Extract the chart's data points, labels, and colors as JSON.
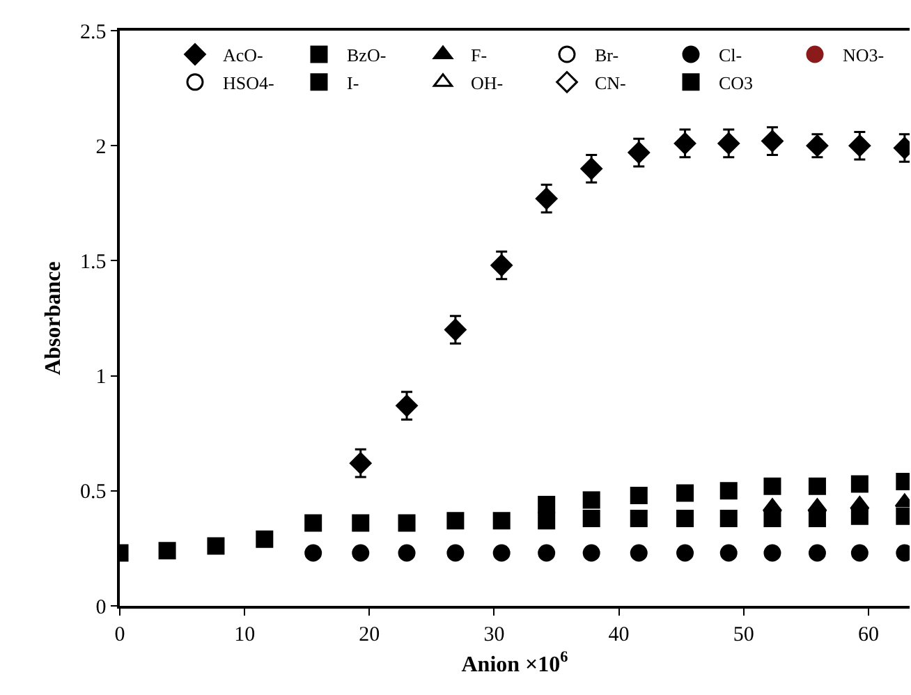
{
  "chart_data": {
    "type": "scatter",
    "xlabel": "Anion ×10$^{6}$",
    "ylabel": "Absorbance",
    "x": [
      0,
      3.8,
      7.7,
      11.6,
      15.5,
      19.3,
      23,
      26.9,
      30.6,
      34.2,
      37.8,
      41.6,
      45.3,
      48.8,
      52.3,
      55.9,
      59.3,
      62.9
    ],
    "xlim": [
      0,
      63.3
    ],
    "xticks": [
      0,
      10,
      20,
      30,
      40,
      50,
      60
    ],
    "ylim": [
      0,
      2.5
    ],
    "yticks": [
      0,
      0.5,
      1,
      1.5,
      2,
      2.5
    ],
    "grid": false,
    "legend": "top",
    "series": [
      {
        "name": "AcO-",
        "color": "#000000",
        "marker": "diamond",
        "values": [
          null,
          null,
          null,
          null,
          null,
          0.62,
          0.87,
          1.2,
          1.48,
          1.77,
          1.9,
          1.97,
          2.01,
          2.01,
          2.02,
          2,
          2,
          1.99
        ],
        "errors": [
          null,
          null,
          null,
          null,
          null,
          0.06,
          0.06,
          0.06,
          0.06,
          0.06,
          0.06,
          0.06,
          0.06,
          0.06,
          0.06,
          0.05,
          0.06,
          0.06
        ]
      },
      {
        "name": "BzO-",
        "color": "#000000",
        "marker": "square",
        "values": [
          null,
          null,
          null,
          null,
          null,
          null,
          null,
          null,
          null,
          0.44,
          0.46,
          0.48,
          0.49,
          0.5,
          0.52,
          0.52,
          0.53,
          0.54
        ]
      },
      {
        "name": "F-",
        "color": "#000000",
        "marker": "triangle",
        "values": [
          null,
          null,
          null,
          null,
          null,
          null,
          null,
          null,
          null,
          null,
          null,
          null,
          null,
          null,
          0.43,
          0.43,
          0.44,
          0.45
        ]
      },
      {
        "name": "Br-",
        "color": "#000000",
        "marker": "circle-open",
        "values": [
          null,
          null,
          null,
          null,
          null,
          null,
          null,
          null,
          null,
          null,
          null,
          null,
          null,
          null,
          null,
          null,
          null,
          null
        ]
      },
      {
        "name": "Cl-",
        "color": "#000000",
        "marker": "circle",
        "values": [
          null,
          null,
          null,
          null,
          0.23,
          0.23,
          0.23,
          0.23,
          0.23,
          0.23,
          0.23,
          0.23,
          0.23,
          0.23,
          0.23,
          0.23,
          0.23,
          0.23
        ]
      },
      {
        "name": "NO3-",
        "color": "#8b1a1a",
        "marker": "circle",
        "values": [
          null,
          null,
          null,
          null,
          null,
          null,
          null,
          null,
          null,
          null,
          null,
          null,
          null,
          null,
          null,
          null,
          null,
          null
        ]
      },
      {
        "name": "HSO4-",
        "color": "#000000",
        "marker": "circle-open",
        "values": [
          null,
          null,
          null,
          null,
          null,
          null,
          null,
          null,
          null,
          null,
          null,
          null,
          null,
          null,
          null,
          null,
          null,
          null
        ]
      },
      {
        "name": "I-",
        "color": "#000000",
        "marker": "square",
        "values": [
          null,
          null,
          null,
          null,
          null,
          null,
          null,
          null,
          null,
          null,
          null,
          null,
          null,
          null,
          null,
          null,
          null,
          null
        ]
      },
      {
        "name": "OH-",
        "color": "#000000",
        "marker": "triangle-open",
        "values": [
          null,
          null,
          null,
          null,
          null,
          null,
          null,
          null,
          null,
          null,
          null,
          null,
          null,
          null,
          null,
          null,
          null,
          null
        ]
      },
      {
        "name": "CN-",
        "color": "#000000",
        "marker": "diamond-open",
        "values": [
          null,
          null,
          null,
          null,
          null,
          null,
          null,
          null,
          null,
          null,
          null,
          null,
          null,
          null,
          null,
          null,
          null,
          null
        ]
      },
      {
        "name": "CO3",
        "color": "#000000",
        "marker": "square",
        "values": [
          0.23,
          0.24,
          0.26,
          0.29,
          0.36,
          0.36,
          0.36,
          0.37,
          0.37,
          0.37,
          0.38,
          0.38,
          0.38,
          0.38,
          0.38,
          0.38,
          0.39,
          0.39
        ]
      }
    ]
  }
}
